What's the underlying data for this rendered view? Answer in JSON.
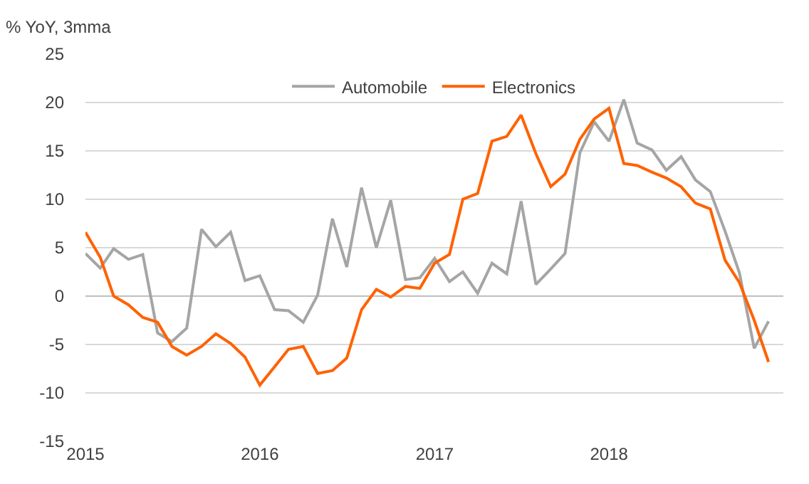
{
  "chart_data": {
    "type": "line",
    "ylabel": "% YoY, 3mma",
    "x": [
      "2015-01",
      "2015-02",
      "2015-03",
      "2015-04",
      "2015-05",
      "2015-06",
      "2015-07",
      "2015-08",
      "2015-09",
      "2015-10",
      "2015-11",
      "2015-12",
      "2016-01",
      "2016-02",
      "2016-03",
      "2016-04",
      "2016-05",
      "2016-06",
      "2016-07",
      "2016-08",
      "2016-09",
      "2016-10",
      "2016-11",
      "2016-12",
      "2017-01",
      "2017-02",
      "2017-03",
      "2017-04",
      "2017-05",
      "2017-06",
      "2017-07",
      "2017-08",
      "2017-09",
      "2017-10",
      "2017-11",
      "2017-12",
      "2018-01",
      "2018-02",
      "2018-03",
      "2018-04",
      "2018-05",
      "2018-06",
      "2018-07",
      "2018-08",
      "2018-09",
      "2018-10",
      "2018-11",
      "2018-12"
    ],
    "series": [
      {
        "name": "Automobile",
        "color": "#a5a5a5",
        "values": [
          4.4,
          2.9,
          4.9,
          3.8,
          4.3,
          -3.8,
          -4.7,
          -3.3,
          6.9,
          5.1,
          6.6,
          1.6,
          2.1,
          -1.4,
          -1.5,
          -2.7,
          0.1,
          8.0,
          3.0,
          11.2,
          5.0,
          9.9,
          1.7,
          1.9,
          3.9,
          1.5,
          2.5,
          0.3,
          3.4,
          2.3,
          9.8,
          1.2,
          2.8,
          4.4,
          14.8,
          18.0,
          16.0,
          20.3,
          15.8,
          15.1,
          13.0,
          14.4,
          12.0,
          10.8,
          6.7,
          2.4,
          -5.4,
          -2.6
        ]
      },
      {
        "name": "Electronics",
        "color": "#ff6200",
        "values": [
          6.6,
          4.0,
          0.0,
          -0.9,
          -2.2,
          -2.7,
          -5.2,
          -6.1,
          -5.2,
          -3.9,
          -4.9,
          -6.3,
          -9.2,
          -7.3,
          -5.5,
          -5.2,
          -8.0,
          -7.7,
          -6.4,
          -1.4,
          0.7,
          -0.1,
          1.0,
          0.8,
          3.4,
          4.3,
          10.0,
          10.6,
          16.0,
          16.5,
          18.7,
          14.7,
          11.3,
          12.6,
          16.2,
          18.3,
          19.4,
          13.7,
          13.5,
          12.8,
          12.2,
          11.3,
          9.6,
          9.0,
          3.7,
          1.4,
          -2.5,
          -6.8
        ]
      }
    ],
    "xlim": [
      "2015-01",
      "2019-01"
    ],
    "xticks": [
      {
        "value": "2015-01",
        "label": "2015"
      },
      {
        "value": "2016-01",
        "label": "2016"
      },
      {
        "value": "2017-01",
        "label": "2017"
      },
      {
        "value": "2018-01",
        "label": "2018"
      }
    ],
    "ylim": [
      -15,
      25
    ],
    "yticks": [
      -15,
      -10,
      -5,
      0,
      5,
      10,
      15,
      20,
      25
    ],
    "grid": "y",
    "legend": "top",
    "marker": "none",
    "line_style": "solid"
  }
}
